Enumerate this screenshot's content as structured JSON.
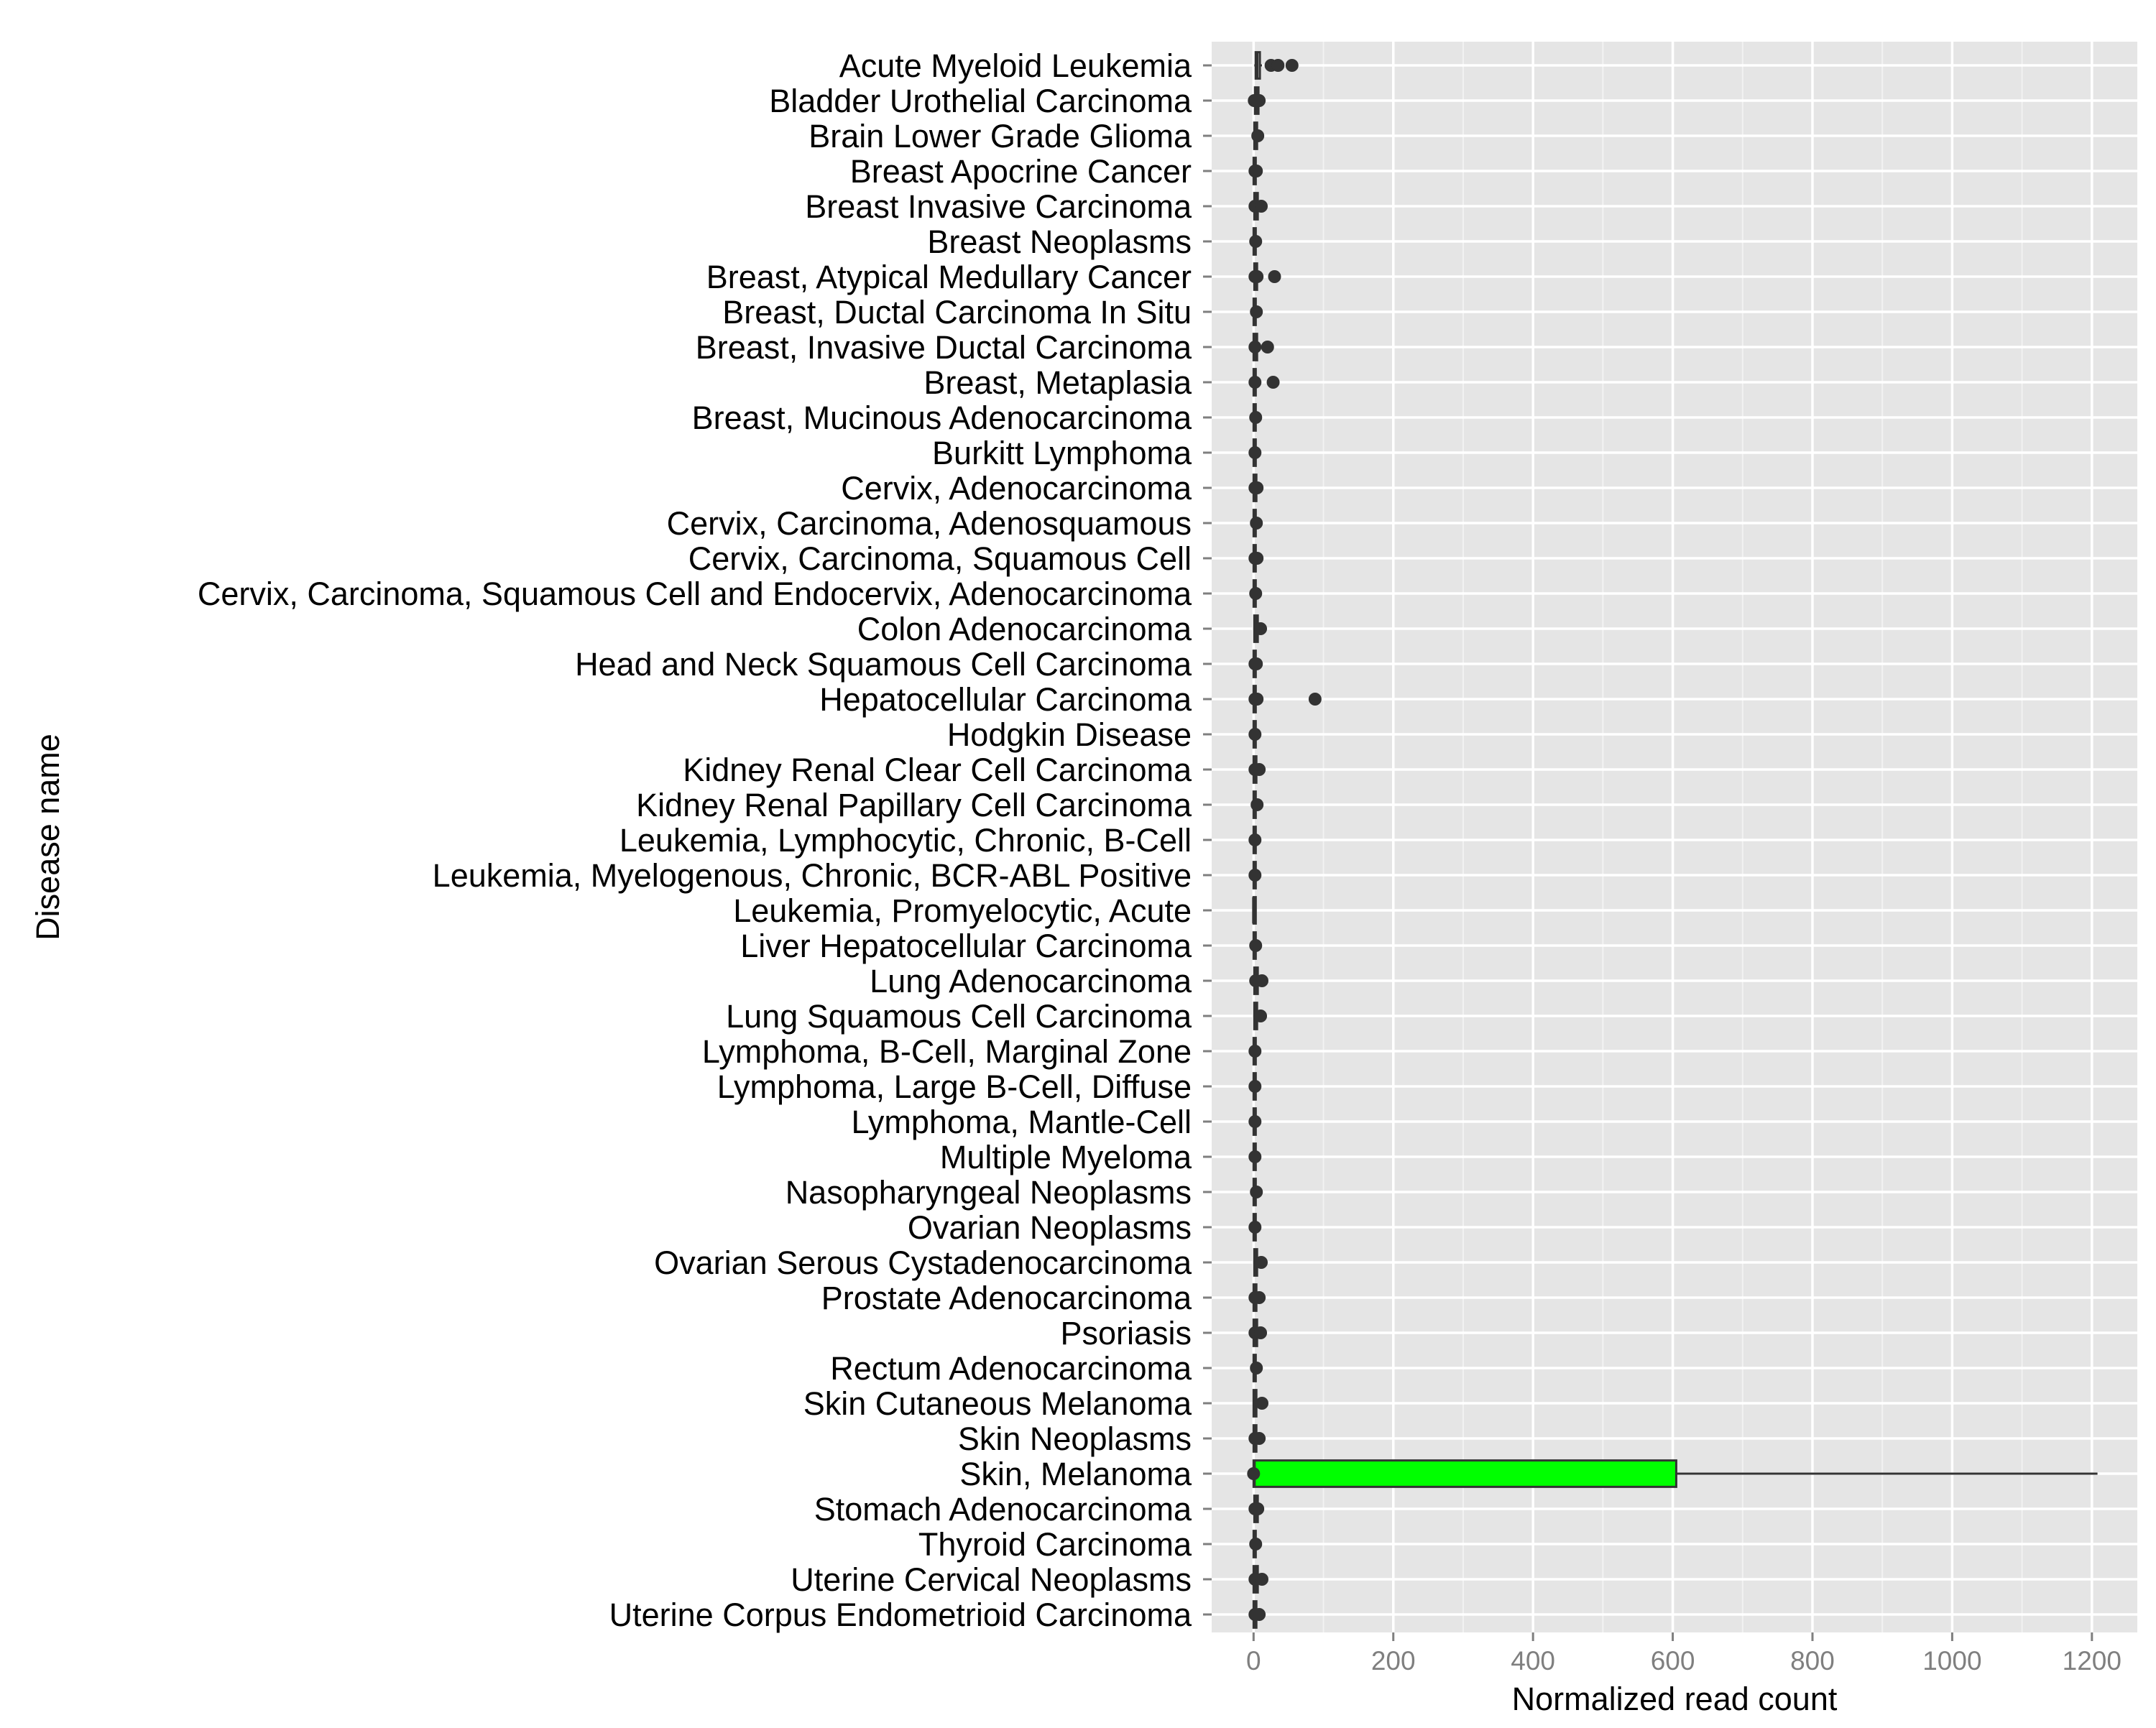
{
  "chart_data": {
    "type": "boxplot",
    "orientation": "horizontal",
    "xlabel": "Normalized read count",
    "ylabel": "Disease name",
    "xlim": [
      -60,
      1265
    ],
    "x_ticks": [
      0,
      200,
      400,
      600,
      800,
      1000,
      1200
    ],
    "grid": true,
    "highlight_color": "#00ff00",
    "box_fill": "#ffffff",
    "panel_background": "#e5e5e5",
    "point_color": "#333333",
    "categories": [
      "Acute Myeloid Leukemia",
      "Bladder Urothelial Carcinoma",
      "Brain Lower Grade Glioma",
      "Breast Apocrine Cancer",
      "Breast Invasive Carcinoma",
      "Breast Neoplasms",
      "Breast, Atypical Medullary Cancer",
      "Breast, Ductal Carcinoma In Situ",
      "Breast, Invasive Ductal Carcinoma",
      "Breast, Metaplasia",
      "Breast, Mucinous Adenocarcinoma",
      "Burkitt Lymphoma",
      "Cervix, Adenocarcinoma",
      "Cervix, Carcinoma, Adenosquamous",
      "Cervix, Carcinoma, Squamous Cell",
      "Cervix, Carcinoma, Squamous Cell and Endocervix, Adenocarcinoma",
      "Colon Adenocarcinoma",
      "Head and Neck Squamous Cell Carcinoma",
      "Hepatocellular Carcinoma",
      "Hodgkin Disease",
      "Kidney Renal Clear Cell Carcinoma",
      "Kidney Renal Papillary Cell Carcinoma",
      "Leukemia, Lymphocytic, Chronic, B-Cell",
      "Leukemia, Myelogenous, Chronic, BCR-ABL Positive",
      "Leukemia, Promyelocytic, Acute",
      "Liver Hepatocellular Carcinoma",
      "Lung Adenocarcinoma",
      "Lung Squamous Cell Carcinoma",
      "Lymphoma, B-Cell, Marginal Zone",
      "Lymphoma, Large B-Cell, Diffuse",
      "Lymphoma, Mantle-Cell",
      "Multiple Myeloma",
      "Nasopharyngeal Neoplasms",
      "Ovarian Neoplasms",
      "Ovarian Serous Cystadenocarcinoma",
      "Prostate Adenocarcinoma",
      "Psoriasis",
      "Rectum Adenocarcinoma",
      "Skin Cutaneous Melanoma",
      "Skin Neoplasms",
      "Skin, Melanoma",
      "Stomach Adenocarcinoma",
      "Thyroid Carcinoma",
      "Uterine Cervical Neoplasms",
      "Uterine Corpus Endometrioid Carcinoma"
    ],
    "boxes": [
      {
        "q1": 3,
        "median": 5,
        "q3": 9,
        "whisker_low": 1,
        "whisker_high": 12,
        "outliers": [
          25,
          35,
          55
        ],
        "highlight": false
      },
      {
        "q1": 2,
        "median": 4,
        "q3": 7,
        "whisker_low": 0,
        "whisker_high": 10,
        "outliers": [
          1,
          8
        ],
        "highlight": false
      },
      {
        "q1": 1,
        "median": 3,
        "q3": 5,
        "whisker_low": 0,
        "whisker_high": 7,
        "outliers": [
          6
        ],
        "highlight": false
      },
      {
        "q1": 0,
        "median": 1,
        "q3": 3,
        "whisker_low": 0,
        "whisker_high": 5,
        "outliers": [
          2,
          4
        ],
        "highlight": false
      },
      {
        "q1": 1,
        "median": 3,
        "q3": 6,
        "whisker_low": 0,
        "whisker_high": 9,
        "outliers": [
          2,
          11
        ],
        "highlight": false
      },
      {
        "q1": 0,
        "median": 1,
        "q3": 2,
        "whisker_low": 0,
        "whisker_high": 4,
        "outliers": [
          3
        ],
        "highlight": false
      },
      {
        "q1": 1,
        "median": 2,
        "q3": 5,
        "whisker_low": 0,
        "whisker_high": 8,
        "outliers": [
          2,
          5,
          30
        ],
        "highlight": false
      },
      {
        "q1": 0,
        "median": 1,
        "q3": 3,
        "whisker_low": 0,
        "whisker_high": 5,
        "outliers": [
          4
        ],
        "highlight": false
      },
      {
        "q1": 0,
        "median": 2,
        "q3": 5,
        "whisker_low": 0,
        "whisker_high": 10,
        "outliers": [
          2,
          20
        ],
        "highlight": false
      },
      {
        "q1": 0,
        "median": 1,
        "q3": 3,
        "whisker_low": 0,
        "whisker_high": 6,
        "outliers": [
          2,
          28
        ],
        "highlight": false
      },
      {
        "q1": 0,
        "median": 1,
        "q3": 2,
        "whisker_low": 0,
        "whisker_high": 4,
        "outliers": [
          3
        ],
        "highlight": false
      },
      {
        "q1": 0,
        "median": 1,
        "q3": 2,
        "whisker_low": 0,
        "whisker_high": 3,
        "outliers": [
          2
        ],
        "highlight": false
      },
      {
        "q1": 0,
        "median": 2,
        "q3": 4,
        "whisker_low": 0,
        "whisker_high": 6,
        "outliers": [
          2,
          5
        ],
        "highlight": false
      },
      {
        "q1": 0,
        "median": 1,
        "q3": 3,
        "whisker_low": 0,
        "whisker_high": 5,
        "outliers": [
          4
        ],
        "highlight": false
      },
      {
        "q1": 0,
        "median": 1,
        "q3": 3,
        "whisker_low": 0,
        "whisker_high": 5,
        "outliers": [
          2,
          5
        ],
        "highlight": false
      },
      {
        "q1": 0,
        "median": 2,
        "q3": 3,
        "whisker_low": 0,
        "whisker_high": 5,
        "outliers": [
          3
        ],
        "highlight": false
      },
      {
        "q1": 1,
        "median": 3,
        "q3": 6,
        "whisker_low": 0,
        "whisker_high": 8,
        "outliers": [
          10
        ],
        "highlight": false
      },
      {
        "q1": 0,
        "median": 1,
        "q3": 3,
        "whisker_low": 0,
        "whisker_high": 5,
        "outliers": [
          2,
          4
        ],
        "highlight": false
      },
      {
        "q1": 0,
        "median": 1,
        "q3": 3,
        "whisker_low": 0,
        "whisker_high": 6,
        "outliers": [
          2,
          5,
          88
        ],
        "highlight": false
      },
      {
        "q1": 0,
        "median": 1,
        "q3": 2,
        "whisker_low": 0,
        "whisker_high": 3,
        "outliers": [
          2
        ],
        "highlight": false
      },
      {
        "q1": 0,
        "median": 2,
        "q3": 4,
        "whisker_low": 0,
        "whisker_high": 7,
        "outliers": [
          2,
          8
        ],
        "highlight": false
      },
      {
        "q1": 0,
        "median": 2,
        "q3": 3,
        "whisker_low": 0,
        "whisker_high": 6,
        "outliers": [
          5
        ],
        "highlight": false
      },
      {
        "q1": 0,
        "median": 1,
        "q3": 2,
        "whisker_low": 0,
        "whisker_high": 3,
        "outliers": [
          2
        ],
        "highlight": false
      },
      {
        "q1": 0,
        "median": 1,
        "q3": 2,
        "whisker_low": 0,
        "whisker_high": 4,
        "outliers": [
          2
        ],
        "highlight": false
      },
      {
        "q1": 0,
        "median": 0,
        "q3": 1,
        "whisker_low": 0,
        "whisker_high": 2,
        "outliers": [],
        "highlight": false
      },
      {
        "q1": 0,
        "median": 1,
        "q3": 3,
        "whisker_low": 0,
        "whisker_high": 5,
        "outliers": [
          3
        ],
        "highlight": false
      },
      {
        "q1": 1,
        "median": 3,
        "q3": 6,
        "whisker_low": 0,
        "whisker_high": 9,
        "outliers": [
          3,
          12
        ],
        "highlight": false
      },
      {
        "q1": 1,
        "median": 2,
        "q3": 5,
        "whisker_low": 0,
        "whisker_high": 8,
        "outliers": [
          10
        ],
        "highlight": false
      },
      {
        "q1": 0,
        "median": 1,
        "q3": 2,
        "whisker_low": 0,
        "whisker_high": 3,
        "outliers": [
          2
        ],
        "highlight": false
      },
      {
        "q1": 0,
        "median": 1,
        "q3": 2,
        "whisker_low": 0,
        "whisker_high": 3,
        "outliers": [
          2
        ],
        "highlight": false
      },
      {
        "q1": 0,
        "median": 1,
        "q3": 2,
        "whisker_low": 0,
        "whisker_high": 3,
        "outliers": [
          2
        ],
        "highlight": false
      },
      {
        "q1": 0,
        "median": 1,
        "q3": 2,
        "whisker_low": 0,
        "whisker_high": 3,
        "outliers": [
          2
        ],
        "highlight": false
      },
      {
        "q1": 0,
        "median": 1,
        "q3": 3,
        "whisker_low": 0,
        "whisker_high": 5,
        "outliers": [
          4
        ],
        "highlight": false
      },
      {
        "q1": 0,
        "median": 1,
        "q3": 2,
        "whisker_low": 0,
        "whisker_high": 3,
        "outliers": [
          2
        ],
        "highlight": false
      },
      {
        "q1": 1,
        "median": 2,
        "q3": 5,
        "whisker_low": 0,
        "whisker_high": 7,
        "outliers": [
          11
        ],
        "highlight": false
      },
      {
        "q1": 0,
        "median": 2,
        "q3": 4,
        "whisker_low": 0,
        "whisker_high": 7,
        "outliers": [
          2,
          8
        ],
        "highlight": false
      },
      {
        "q1": 0,
        "median": 2,
        "q3": 5,
        "whisker_low": 0,
        "whisker_high": 8,
        "outliers": [
          2,
          10
        ],
        "highlight": false
      },
      {
        "q1": 0,
        "median": 1,
        "q3": 3,
        "whisker_low": 0,
        "whisker_high": 5,
        "outliers": [
          4
        ],
        "highlight": false
      },
      {
        "q1": 0,
        "median": 2,
        "q3": 4,
        "whisker_low": 0,
        "whisker_high": 7,
        "outliers": [
          12
        ],
        "highlight": false
      },
      {
        "q1": 0,
        "median": 2,
        "q3": 4,
        "whisker_low": 0,
        "whisker_high": 7,
        "outliers": [
          2,
          8
        ],
        "highlight": false
      },
      {
        "q1": 0,
        "median": 1,
        "q3": 605,
        "whisker_low": 0,
        "whisker_high": 1208,
        "outliers": [
          0
        ],
        "highlight": true
      },
      {
        "q1": 1,
        "median": 3,
        "q3": 6,
        "whisker_low": 0,
        "whisker_high": 8,
        "outliers": [
          2,
          6
        ],
        "highlight": false
      },
      {
        "q1": 0,
        "median": 1,
        "q3": 3,
        "whisker_low": 0,
        "whisker_high": 4,
        "outliers": [
          3
        ],
        "highlight": false
      },
      {
        "q1": 0,
        "median": 3,
        "q3": 6,
        "whisker_low": 0,
        "whisker_high": 10,
        "outliers": [
          2,
          12
        ],
        "highlight": false
      },
      {
        "q1": 0,
        "median": 2,
        "q3": 4,
        "whisker_low": 0,
        "whisker_high": 7,
        "outliers": [
          2,
          8
        ],
        "highlight": false
      }
    ]
  }
}
